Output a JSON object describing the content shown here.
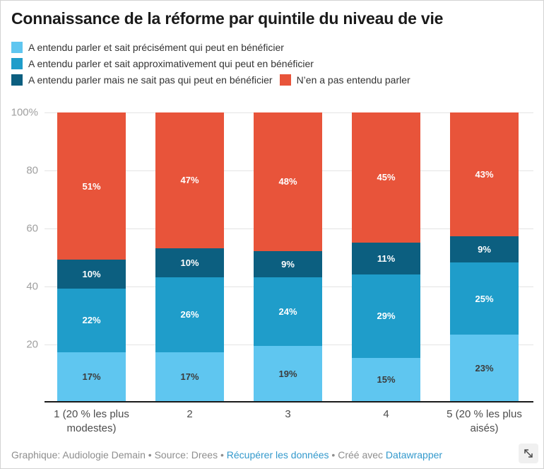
{
  "title": "Connaissance de la réforme par quintile du niveau de vie",
  "chart_data": {
    "type": "bar",
    "stacked": true,
    "unit": "%",
    "title": "Connaissance de la réforme par quintile du niveau de vie",
    "categories": [
      "1 (20 % les plus\nmodestes)",
      "2",
      "3",
      "4",
      "5 (20 % les plus\naisés)"
    ],
    "series": [
      {
        "name": "A entendu parler et sait précisément qui peut en bénéficier",
        "color": "#5fc6f0",
        "label_color": "#3c3c3c",
        "values": [
          17,
          17,
          19,
          15,
          23
        ]
      },
      {
        "name": "A entendu parler et sait approximativement qui peut en bénéficier",
        "color": "#1f9dca",
        "label_color": "#ffffff",
        "values": [
          22,
          26,
          24,
          29,
          25
        ]
      },
      {
        "name": "A entendu parler mais ne sait pas qui peut en bénéficier",
        "color": "#0c5f80",
        "label_color": "#ffffff",
        "values": [
          10,
          10,
          9,
          11,
          9
        ]
      },
      {
        "name": "N’en a pas entendu parler",
        "color": "#e8543a",
        "label_color": "#ffffff",
        "values": [
          51,
          47,
          48,
          45,
          43
        ]
      }
    ],
    "legend_rows": [
      [
        0
      ],
      [
        1
      ],
      [
        2,
        3
      ]
    ],
    "y_ticks": [
      {
        "value": 100,
        "label": "100%"
      },
      {
        "value": 80,
        "label": "80"
      },
      {
        "value": 60,
        "label": "60"
      },
      {
        "value": 40,
        "label": "40"
      },
      {
        "value": 20,
        "label": "20"
      }
    ],
    "ylim": [
      0,
      100
    ],
    "grid": true,
    "legend_position": "top",
    "xlabel": "",
    "ylabel": ""
  },
  "footer": {
    "parts": [
      {
        "text": "Graphique: Audiologie Demain"
      },
      {
        "text": " • "
      },
      {
        "text": "Source: Drees"
      },
      {
        "text": " • "
      },
      {
        "text": "Récupérer les données"
      },
      {
        "text": " • "
      },
      {
        "text": "Créé avec "
      },
      {
        "text": "Datawrapper"
      }
    ],
    "link_color": "#3399cc",
    "text_color": "#8e8e8e"
  },
  "icons": {
    "expand": "expand-diagonal-arrow"
  }
}
